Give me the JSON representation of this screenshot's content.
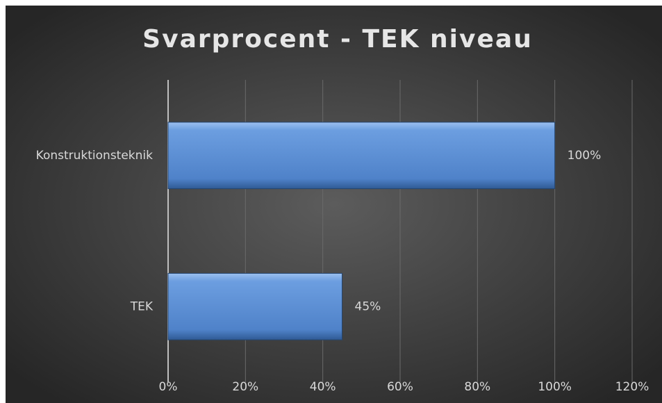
{
  "chart_data": {
    "type": "hbar",
    "title": "Svarprocent - TEK niveau",
    "categories": [
      "Konstruktionsteknik",
      "TEK"
    ],
    "values": [
      100,
      45
    ],
    "value_labels": [
      "100%",
      "45%"
    ],
    "color": "#5b8fd6",
    "xlim": [
      0,
      120
    ],
    "xticks": [
      {
        "value": 0,
        "label": "0%"
      },
      {
        "value": 20,
        "label": "20%"
      },
      {
        "value": 40,
        "label": "40%"
      },
      {
        "value": 60,
        "label": "60%"
      },
      {
        "value": 80,
        "label": "80%"
      },
      {
        "value": 100,
        "label": "100%"
      },
      {
        "value": 120,
        "label": "120%"
      }
    ],
    "grid": true
  }
}
